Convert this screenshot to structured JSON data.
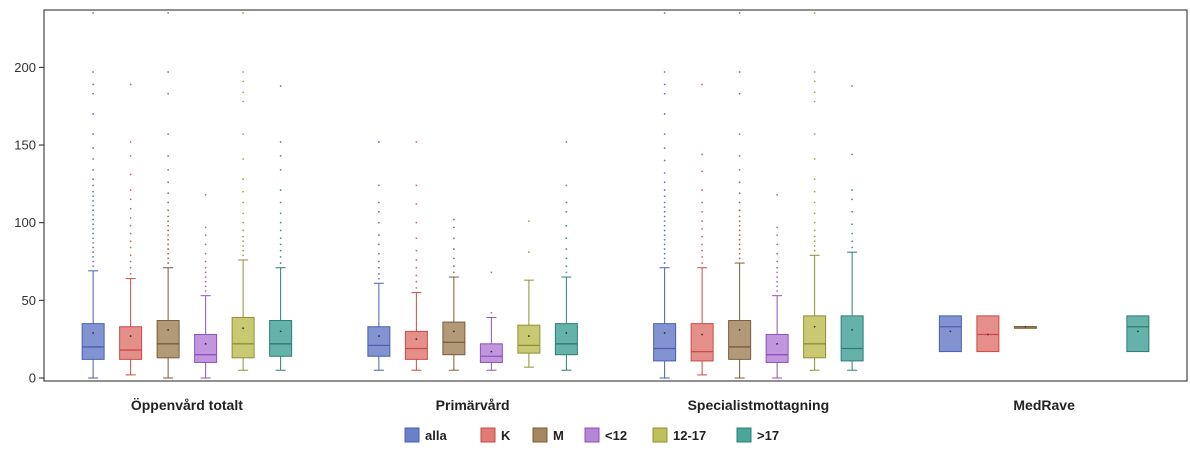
{
  "chart_data": {
    "type": "boxplot",
    "title": "",
    "xlabel": "",
    "ylabel": "",
    "ylim": [
      0,
      235
    ],
    "yticks": [
      0,
      50,
      100,
      150,
      200
    ],
    "grid": false,
    "legend_position": "bottom",
    "categories": [
      "Öppenvård totalt",
      "Primärvård",
      "Specialistmottagning",
      "MedRave"
    ],
    "series": [
      {
        "name": "alla",
        "color": "#6b80c9",
        "stroke": "#4a5fb0",
        "boxes": [
          {
            "min": 0,
            "q1": 12,
            "median": 20,
            "q3": 35,
            "max": 69,
            "mean": 29,
            "outliers": [
              72,
              75,
              78,
              81,
              84,
              87,
              90,
              93,
              96,
              99,
              102,
              105,
              108,
              111,
              114,
              117,
              120,
              124,
              128,
              134,
              141,
              148,
              157,
              170,
              183,
              189,
              197,
              235
            ]
          },
          {
            "min": 5,
            "q1": 14,
            "median": 21,
            "q3": 33,
            "max": 61,
            "mean": 27,
            "outliers": [
              64,
              67,
              71,
              75,
              80,
              86,
              92,
              100,
              107,
              113,
              124,
              152
            ]
          },
          {
            "min": 0,
            "q1": 11,
            "median": 19,
            "q3": 35,
            "max": 71,
            "mean": 29,
            "outliers": [
              74,
              77,
              80,
              83,
              86,
              89,
              92,
              95,
              98,
              101,
              104,
              107,
              110,
              113,
              117,
              121,
              126,
              132,
              140,
              148,
              157,
              170,
              183,
              189,
              197,
              235
            ]
          },
          {
            "min": 17,
            "q1": 17,
            "median": 33,
            "q3": 40,
            "max": 40,
            "mean": 30,
            "outliers": []
          }
        ]
      },
      {
        "name": "K",
        "color": "#e07b76",
        "stroke": "#c94b45",
        "boxes": [
          {
            "min": 2,
            "q1": 12,
            "median": 18,
            "q3": 33,
            "max": 64,
            "mean": 27,
            "outliers": [
              67,
              71,
              75,
              79,
              84,
              88,
              93,
              98,
              103,
              109,
              115,
              121,
              131,
              143,
              152,
              189
            ]
          },
          {
            "min": 5,
            "q1": 12,
            "median": 19,
            "q3": 30,
            "max": 55,
            "mean": 25,
            "outliers": [
              58,
              62,
              66,
              71,
              76,
              82,
              90,
              100,
              112,
              124,
              152
            ]
          },
          {
            "min": 2,
            "q1": 11,
            "median": 17,
            "q3": 35,
            "max": 71,
            "mean": 28,
            "outliers": [
              74,
              78,
              82,
              86,
              91,
              96,
              101,
              107,
              113,
              121,
              133,
              144,
              189
            ]
          },
          {
            "min": 17,
            "q1": 17,
            "median": 28,
            "q3": 40,
            "max": 40,
            "mean": 28,
            "outliers": []
          }
        ]
      },
      {
        "name": "M",
        "color": "#a58860",
        "stroke": "#7a5c38",
        "boxes": [
          {
            "min": 0,
            "q1": 13,
            "median": 22,
            "q3": 37,
            "max": 71,
            "mean": 31,
            "outliers": [
              74,
              77,
              80,
              83,
              86,
              89,
              92,
              95,
              98,
              101,
              104,
              108,
              113,
              119,
              126,
              134,
              143,
              157,
              183,
              197,
              235
            ]
          },
          {
            "min": 5,
            "q1": 15,
            "median": 23,
            "q3": 36,
            "max": 65,
            "mean": 30,
            "outliers": [
              68,
              72,
              77,
              83,
              90,
              97,
              102
            ]
          },
          {
            "min": 0,
            "q1": 12,
            "median": 20,
            "q3": 37,
            "max": 74,
            "mean": 31,
            "outliers": [
              77,
              80,
              83,
              86,
              89,
              92,
              95,
              98,
              101,
              104,
              108,
              113,
              119,
              126,
              134,
              143,
              157,
              183,
              197,
              235
            ]
          },
          {
            "min": 32,
            "q1": 32,
            "median": 33,
            "q3": 33,
            "max": 33,
            "mean": 33,
            "outliers": []
          }
        ]
      },
      {
        "name": "<12",
        "color": "#b784d8",
        "stroke": "#8e52ba",
        "boxes": [
          {
            "min": 0,
            "q1": 10,
            "median": 15,
            "q3": 28,
            "max": 53,
            "mean": 22,
            "outliers": [
              56,
              59,
              62,
              65,
              68,
              71,
              75,
              80,
              86,
              92,
              97,
              118
            ]
          },
          {
            "min": 5,
            "q1": 10,
            "median": 14,
            "q3": 22,
            "max": 39,
            "mean": 17,
            "outliers": [
              42,
              68
            ]
          },
          {
            "min": 0,
            "q1": 10,
            "median": 15,
            "q3": 28,
            "max": 53,
            "mean": 22,
            "outliers": [
              56,
              59,
              62,
              65,
              68,
              71,
              75,
              80,
              86,
              92,
              97,
              118
            ]
          }
        ]
      },
      {
        "name": "12-17",
        "color": "#bfc05a",
        "stroke": "#8f9030",
        "boxes": [
          {
            "min": 5,
            "q1": 13,
            "median": 22,
            "q3": 39,
            "max": 76,
            "mean": 32,
            "outliers": [
              79,
              82,
              85,
              88,
              91,
              95,
              100,
              106,
              113,
              120,
              128,
              141,
              157,
              178,
              184,
              191,
              197,
              235
            ]
          },
          {
            "min": 7,
            "q1": 16,
            "median": 21,
            "q3": 34,
            "max": 63,
            "mean": 27,
            "outliers": [
              81,
              101
            ]
          },
          {
            "min": 5,
            "q1": 13,
            "median": 22,
            "q3": 40,
            "max": 79,
            "mean": 33,
            "outliers": [
              82,
              85,
              88,
              91,
              95,
              100,
              106,
              113,
              120,
              128,
              141,
              157,
              178,
              184,
              191,
              197,
              235
            ]
          }
        ]
      },
      {
        "name": ">17",
        "color": "#4aa59b",
        "stroke": "#2d7d74",
        "boxes": [
          {
            "min": 5,
            "q1": 14,
            "median": 22,
            "q3": 37,
            "max": 71,
            "mean": 30,
            "outliers": [
              74,
              78,
              82,
              86,
              90,
              95,
              100,
              106,
              113,
              121,
              134,
              143,
              152,
              188
            ]
          },
          {
            "min": 5,
            "q1": 15,
            "median": 22,
            "q3": 35,
            "max": 65,
            "mean": 29,
            "outliers": [
              68,
              72,
              77,
              83,
              90,
              98,
              107,
              113,
              124,
              152
            ]
          },
          {
            "min": 5,
            "q1": 11,
            "median": 19,
            "q3": 40,
            "max": 81,
            "mean": 31,
            "outliers": [
              84,
              88,
              93,
              99,
              107,
              115,
              121,
              144,
              188
            ]
          },
          {
            "min": 17,
            "q1": 17,
            "median": 33,
            "q3": 40,
            "max": 40,
            "mean": 30,
            "outliers": []
          }
        ]
      }
    ]
  }
}
